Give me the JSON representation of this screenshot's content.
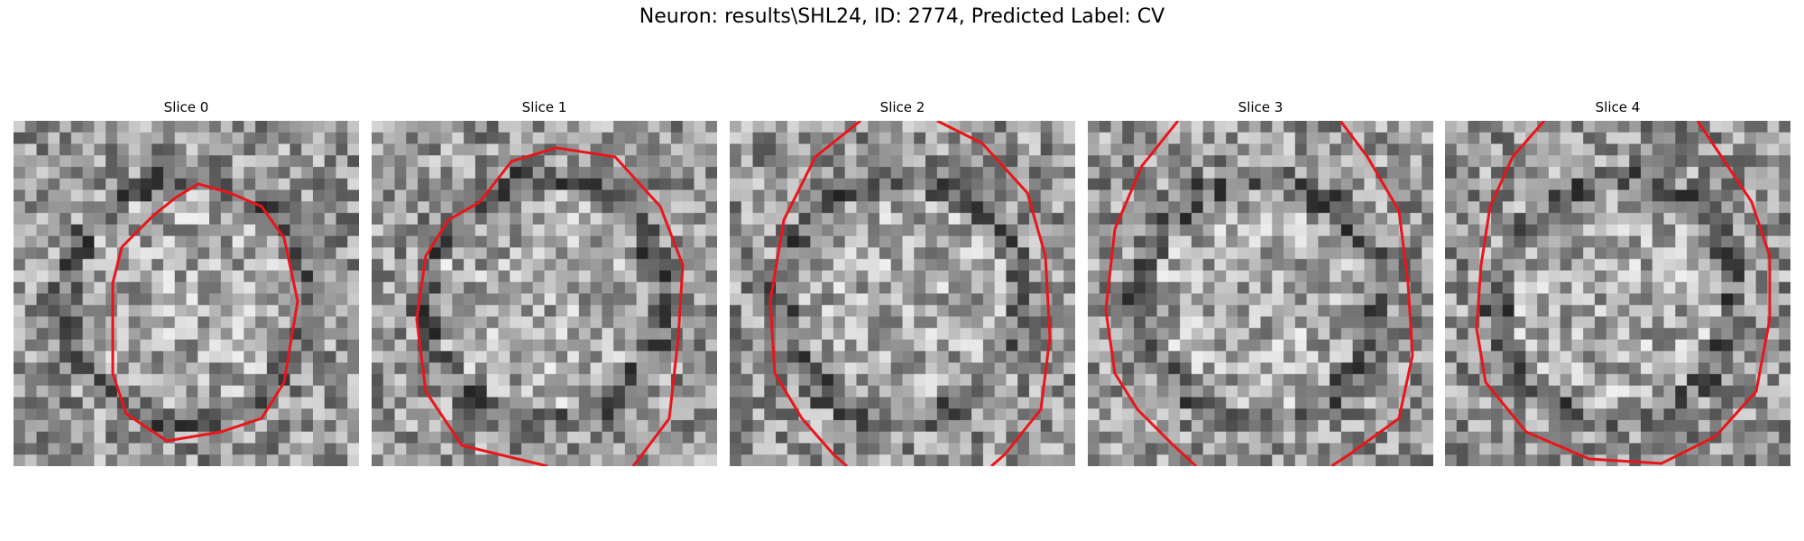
{
  "figure": {
    "title": "Neuron: results\\SHL24, ID: 2774, Predicted Label: CV"
  },
  "colors": {
    "contour": "#e8161b",
    "background": "#ffffff"
  },
  "panels": [
    {
      "label": "Slice 0",
      "content": "grayscale-noise-microscopy-patch",
      "seed": 11
    },
    {
      "label": "Slice 1",
      "content": "grayscale-noise-microscopy-patch",
      "seed": 23
    },
    {
      "label": "Slice 2",
      "content": "grayscale-noise-microscopy-patch",
      "seed": 37
    },
    {
      "label": "Slice 3",
      "content": "grayscale-noise-microscopy-patch",
      "seed": 51
    },
    {
      "label": "Slice 4",
      "content": "grayscale-noise-microscopy-patch",
      "seed": 67
    }
  ]
}
